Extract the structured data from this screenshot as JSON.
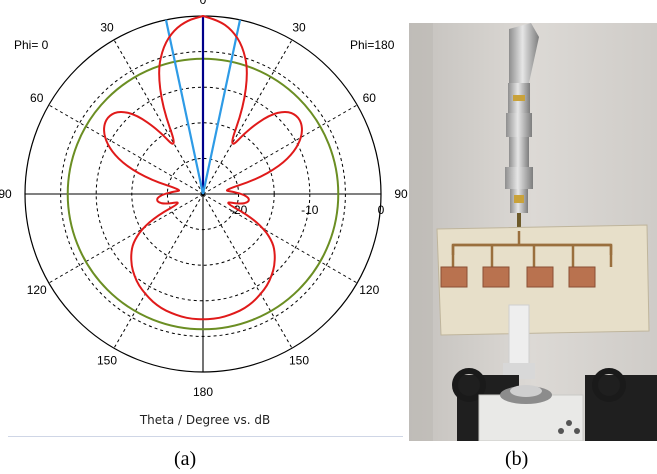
{
  "chart_data": {
    "type": "polar",
    "phi_left": "Phi=  0",
    "phi_right": "Phi=180",
    "angle_labels": [
      "0",
      "30",
      "60",
      "90",
      "120",
      "150",
      "180",
      "150",
      "120",
      "90",
      "60",
      "30"
    ],
    "radial_labels": [
      "-20",
      "-10",
      "0"
    ],
    "rlim_db": [
      -25,
      0
    ],
    "caption": "Theta / Degree vs. dB",
    "grid": true,
    "series": [
      {
        "color": "#e01a1a",
        "theta_deg": [
          0,
          5,
          10,
          15,
          20,
          25,
          30,
          35,
          40,
          45,
          50,
          55,
          60,
          65,
          70,
          75,
          80,
          85,
          90,
          95,
          100,
          105,
          110,
          115,
          120,
          125,
          130,
          135,
          140,
          145,
          150,
          155,
          160,
          165,
          170,
          175,
          180
        ],
        "gain_db": [
          0.0,
          -0.5,
          -1.6,
          -3.5,
          -6.5,
          -11.5,
          -18,
          -14,
          -10.5,
          -8.5,
          -7.8,
          -8.0,
          -9.0,
          -10.8,
          -13.5,
          -17.5,
          -22,
          -21,
          -19.5,
          -18.5,
          -18.5,
          -19.5,
          -22,
          -18,
          -15,
          -13,
          -11.8,
          -10.8,
          -10.0,
          -9.3,
          -8.8,
          -8.3,
          -7.9,
          -7.7,
          -7.5,
          -7.4,
          -7.4
        ]
      },
      {
        "color": "#6b8e23",
        "constant_db": -6.0
      }
    ],
    "beam_lines_deg": [
      {
        "color": "#00008b",
        "values": [
          0
        ]
      },
      {
        "color": "#2e9be6",
        "values": [
          -12,
          12
        ]
      }
    ]
  },
  "caption_labels": {
    "a": "(a)",
    "b": "(b)"
  }
}
